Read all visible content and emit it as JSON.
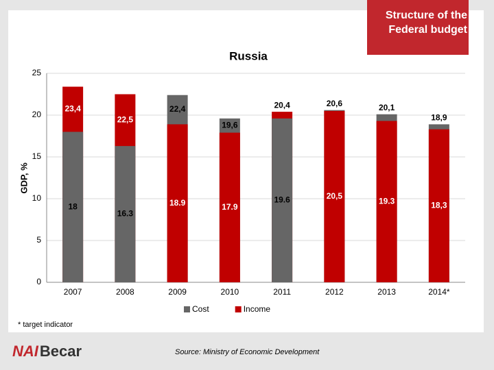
{
  "header": {
    "tag": "Structure of the Federal budget"
  },
  "chart_data": {
    "type": "bar",
    "overlap": true,
    "title": "Russia",
    "ylabel": "GDP, %",
    "categories": [
      "2007",
      "2008",
      "2009",
      "2010",
      "2011",
      "2012",
      "2013",
      "2014*"
    ],
    "series": [
      {
        "name": "Cost",
        "color": "#666666",
        "label_color": "#000000",
        "values": [
          18,
          16.3,
          22.4,
          19.6,
          19.6,
          20.6,
          20.1,
          18.9
        ],
        "value_labels": [
          "18",
          "16.3",
          "22,4",
          "19,6",
          "19.6",
          "20,6",
          "20,1",
          "18,9"
        ]
      },
      {
        "name": "Income",
        "color": "#c00000",
        "label_color": "#ffffff",
        "values": [
          23.4,
          22.5,
          18.9,
          17.9,
          20.4,
          20.5,
          19.3,
          18.3
        ],
        "value_labels": [
          "23,4",
          "22,5",
          "18.9",
          "17.9",
          "20,4",
          "20,5",
          "19.3",
          "18,3"
        ]
      }
    ],
    "ylim": [
      0,
      25
    ],
    "yticks": [
      0,
      5,
      10,
      15,
      20,
      25
    ],
    "grid": true,
    "legend": "bottom"
  },
  "footnote": "* target indicator",
  "source": "Source: Ministry of Economic Development",
  "logo": {
    "mark": "NAI",
    "name": "Becar"
  }
}
